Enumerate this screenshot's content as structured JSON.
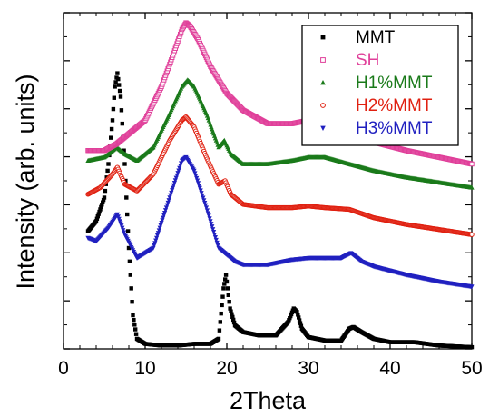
{
  "chart_data": {
    "type": "scatter",
    "title": "",
    "xlabel": "2Theta",
    "ylabel": "Intensity (arb. units)",
    "xlim": [
      0,
      50
    ],
    "xticks": [
      0,
      10,
      20,
      30,
      40,
      50
    ],
    "x_tick_labels": [
      "0",
      "10",
      "20",
      "30",
      "40",
      "50"
    ],
    "ylim": [
      0,
      100
    ],
    "y_tick_labels_shown": false,
    "legend_position": "top-right",
    "series": [
      {
        "name": "MMT",
        "color": "#000000",
        "marker": "square",
        "points": [
          [
            3,
            35
          ],
          [
            4,
            38
          ],
          [
            5,
            45
          ],
          [
            5.5,
            55
          ],
          [
            6,
            68
          ],
          [
            6.3,
            78
          ],
          [
            6.6,
            82
          ],
          [
            7,
            75
          ],
          [
            7.5,
            55
          ],
          [
            8,
            30
          ],
          [
            8.5,
            10
          ],
          [
            9,
            3
          ],
          [
            10,
            1.5
          ],
          [
            12,
            1
          ],
          [
            14,
            1
          ],
          [
            16,
            1.5
          ],
          [
            18,
            1.5
          ],
          [
            19,
            3
          ],
          [
            19.6,
            18
          ],
          [
            19.9,
            22
          ],
          [
            20.4,
            12
          ],
          [
            21,
            7
          ],
          [
            22,
            5
          ],
          [
            24,
            4
          ],
          [
            26,
            4
          ],
          [
            27.5,
            8
          ],
          [
            28.2,
            12
          ],
          [
            28.6,
            11
          ],
          [
            29.2,
            6
          ],
          [
            30,
            3.5
          ],
          [
            32,
            2.5
          ],
          [
            34,
            2.5
          ],
          [
            35,
            6
          ],
          [
            35.5,
            6.5
          ],
          [
            36.5,
            5
          ],
          [
            38,
            3
          ],
          [
            40,
            2
          ],
          [
            43,
            2
          ],
          [
            46,
            1
          ],
          [
            50,
            0.5
          ]
        ]
      },
      {
        "name": "SH",
        "color": "#e0409a",
        "marker": "open-square",
        "points": [
          [
            3,
            59
          ],
          [
            5,
            59
          ],
          [
            6.5,
            61
          ],
          [
            8,
            64
          ],
          [
            10,
            68
          ],
          [
            12,
            78
          ],
          [
            13.5,
            88
          ],
          [
            14.5,
            95
          ],
          [
            15,
            97
          ],
          [
            15.5,
            96
          ],
          [
            16.5,
            92
          ],
          [
            18,
            84
          ],
          [
            20,
            76
          ],
          [
            22,
            71
          ],
          [
            25,
            67
          ],
          [
            28,
            67
          ],
          [
            30,
            68
          ],
          [
            32,
            67.5
          ],
          [
            35,
            65
          ],
          [
            38,
            61.5
          ],
          [
            42,
            59
          ],
          [
            46,
            57
          ],
          [
            50,
            55
          ]
        ]
      },
      {
        "name": "H1%MMT",
        "color": "#1a7a1a",
        "marker": "triangle",
        "points": [
          [
            3,
            56
          ],
          [
            5,
            57
          ],
          [
            6.5,
            60
          ],
          [
            7.5,
            58
          ],
          [
            9,
            56
          ],
          [
            11,
            60
          ],
          [
            13,
            70
          ],
          [
            14.5,
            78
          ],
          [
            15.2,
            80
          ],
          [
            16,
            78
          ],
          [
            17.5,
            70
          ],
          [
            19,
            60
          ],
          [
            19.7,
            62
          ],
          [
            20.5,
            58
          ],
          [
            22,
            55
          ],
          [
            25,
            55
          ],
          [
            28,
            56
          ],
          [
            30,
            57
          ],
          [
            32,
            57
          ],
          [
            35,
            55
          ],
          [
            38,
            53
          ],
          [
            42,
            51
          ],
          [
            46,
            49.5
          ],
          [
            50,
            48
          ]
        ]
      },
      {
        "name": "H2%MMT",
        "color": "#e02010",
        "marker": "open-circle",
        "points": [
          [
            3,
            46
          ],
          [
            4.5,
            48
          ],
          [
            6,
            52
          ],
          [
            6.6,
            54
          ],
          [
            7.5,
            49
          ],
          [
            9,
            47
          ],
          [
            11,
            52
          ],
          [
            13,
            62
          ],
          [
            14.5,
            68
          ],
          [
            15,
            69
          ],
          [
            16,
            66
          ],
          [
            17.5,
            57
          ],
          [
            19,
            49
          ],
          [
            19.8,
            50
          ],
          [
            20.5,
            46
          ],
          [
            22,
            43
          ],
          [
            25,
            42
          ],
          [
            28,
            42
          ],
          [
            30,
            42.5
          ],
          [
            32,
            42
          ],
          [
            35,
            41.5
          ],
          [
            38,
            39
          ],
          [
            42,
            37
          ],
          [
            46,
            35.5
          ],
          [
            50,
            34
          ]
        ]
      },
      {
        "name": "H3%MMT",
        "color": "#2020c0",
        "marker": "triangle-down",
        "points": [
          [
            3,
            33
          ],
          [
            4,
            32
          ],
          [
            5.5,
            36
          ],
          [
            6.6,
            40
          ],
          [
            7.5,
            34
          ],
          [
            9,
            27
          ],
          [
            11,
            30
          ],
          [
            13,
            45
          ],
          [
            14.5,
            56
          ],
          [
            15,
            57
          ],
          [
            16,
            53
          ],
          [
            17.5,
            42
          ],
          [
            19,
            30
          ],
          [
            20,
            28
          ],
          [
            21,
            26
          ],
          [
            22,
            25
          ],
          [
            25,
            25
          ],
          [
            28,
            26.5
          ],
          [
            30,
            27
          ],
          [
            32,
            27
          ],
          [
            34,
            27
          ],
          [
            35.2,
            28.5
          ],
          [
            36.5,
            26
          ],
          [
            38,
            24.5
          ],
          [
            42,
            22
          ],
          [
            46,
            20
          ],
          [
            50,
            18.5
          ]
        ]
      }
    ]
  }
}
